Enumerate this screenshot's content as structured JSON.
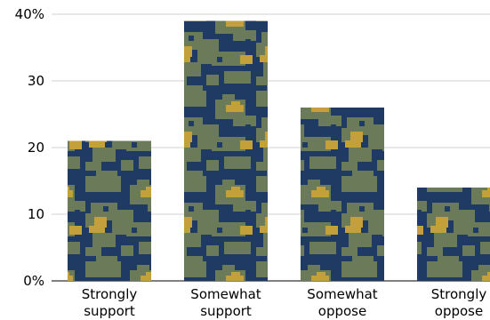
{
  "chart_data": {
    "type": "bar",
    "title": "",
    "xlabel": "",
    "ylabel": "",
    "ylim": [
      0,
      40
    ],
    "y_ticks": [
      0,
      10,
      20,
      30,
      40
    ],
    "y_tick_labels": [
      "0%",
      "10",
      "20",
      "30",
      "40%"
    ],
    "grid": true,
    "categories": [
      [
        "Strongly",
        "support"
      ],
      [
        "Somewhat",
        "support"
      ],
      [
        "Somewhat",
        "oppose"
      ],
      [
        "Strongly",
        "oppose"
      ]
    ],
    "values": [
      21,
      39,
      26,
      14
    ],
    "bar_fill": "camouflage-pattern",
    "colors": {
      "navy": "#1f3b63",
      "olive": "#6b7b59",
      "gold": "#c4a03a",
      "grid": "#d0d0d0"
    }
  }
}
